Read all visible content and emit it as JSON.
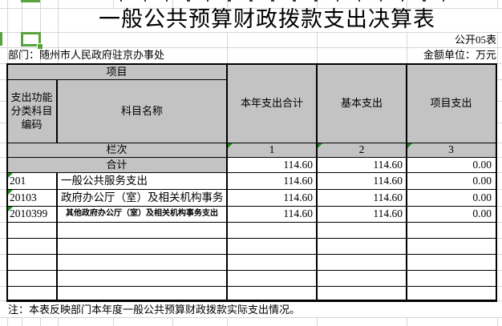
{
  "header": {
    "title": "一般公共预算财政拨款支出决算表",
    "table_code": "公开05表",
    "department": "部门：随州市人民政府驻京办事处",
    "unit": "金额单位：万元"
  },
  "table": {
    "project_header": "项目",
    "columns": {
      "code": "支出功能分类科目编码",
      "name": "科目名称",
      "total": "本年支出合计",
      "basic": "基本支出",
      "project": "项目支出"
    },
    "lanci": {
      "label": "栏次",
      "col1": "1",
      "col2": "2",
      "col3": "3"
    },
    "rows": [
      {
        "code": "",
        "name": "合计",
        "total": "114.60",
        "basic": "114.60",
        "project": "0.00"
      },
      {
        "code": "201",
        "name": "一般公共服务支出",
        "total": "114.60",
        "basic": "114.60",
        "project": "0.00"
      },
      {
        "code": "20103",
        "name": "政府办公厅（室）及相关机构事务",
        "total": "114.60",
        "basic": "114.60",
        "project": "0.00"
      },
      {
        "code": "2010399",
        "name": "其他政府办公厅（室）及相关机构事务支出",
        "total": "114.60",
        "basic": "114.60",
        "project": "0.00"
      }
    ],
    "empty_row_count": 5
  },
  "note": "注：本表反映部门本年度一般公共预算财政拨款实际支出情况。",
  "colors": {
    "header_fill": "#c3c3c3",
    "selection_green": "#58a43c",
    "error_triangle_green": "#1f8a1f",
    "gridline": "#d6d6d6"
  }
}
